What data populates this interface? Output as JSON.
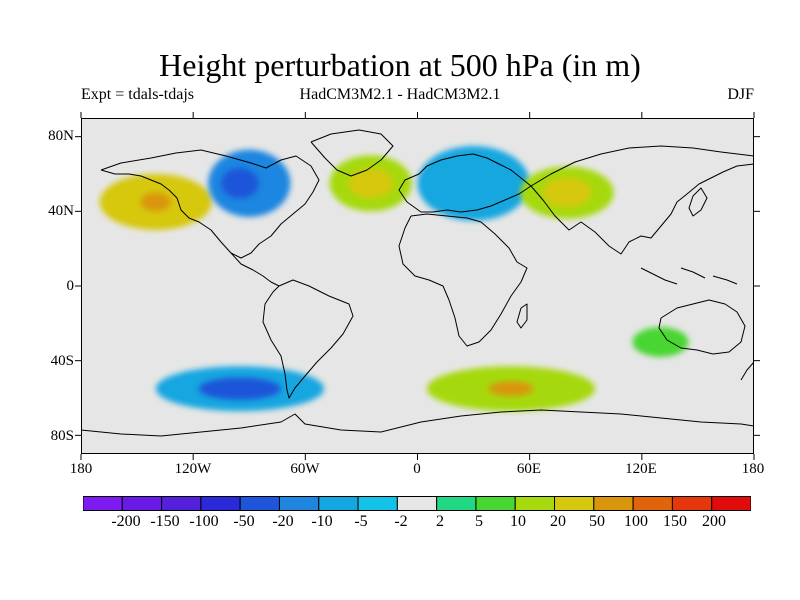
{
  "title": "Height perturbation at 500 hPa (in m)",
  "subtitle_left": "Expt = tdals-tdajs",
  "subtitle_center": "HadCM3M2.1 - HadCM3M2.1",
  "subtitle_right": "DJF",
  "lat_labels": [
    "80N",
    "40N",
    "0",
    "40S",
    "80S"
  ],
  "lon_labels": [
    "180",
    "120W",
    "60W",
    "0",
    "60E",
    "120E",
    "180"
  ],
  "colorbar": {
    "labels": [
      "-200",
      "-150",
      "-100",
      "-50",
      "-20",
      "-10",
      "-5",
      "-2",
      "2",
      "5",
      "10",
      "20",
      "50",
      "100",
      "150",
      "200"
    ],
    "colors": [
      "#7d1aef",
      "#6a1ae6",
      "#5520dc",
      "#2a2ad8",
      "#1f55d8",
      "#1f86e0",
      "#13a6e0",
      "#13c2e6",
      "#e6e6e6",
      "#21d884",
      "#48d630",
      "#a6d90e",
      "#d6c80c",
      "#d9960c",
      "#e0640c",
      "#e6360c",
      "#e00c0c"
    ]
  },
  "map": {
    "background": "#e6e6e6",
    "projection": "cylindrical equidistant"
  },
  "chart_data": {
    "type": "heatmap",
    "title": "Height perturbation at 500 hPa (in m)",
    "season": "DJF",
    "units": "m",
    "xlim": [
      -180,
      180
    ],
    "ylim": [
      -90,
      90
    ],
    "contour_levels": [
      -200,
      -150,
      -100,
      -50,
      -20,
      -10,
      -5,
      -2,
      2,
      5,
      10,
      20,
      50,
      100,
      150,
      200
    ],
    "features": [
      {
        "name": "north-pacific-high",
        "lon": -140,
        "lat": 45,
        "rx": 30,
        "ry": 15,
        "level": 20
      },
      {
        "name": "north-pacific-high-core",
        "lon": -140,
        "lat": 45,
        "rx": 8,
        "ry": 5,
        "level": 50
      },
      {
        "name": "north-america-low",
        "lon": -90,
        "lat": 55,
        "rx": 22,
        "ry": 18,
        "level": -20
      },
      {
        "name": "north-america-low-core",
        "lon": -95,
        "lat": 55,
        "rx": 10,
        "ry": 8,
        "level": -50
      },
      {
        "name": "north-atlantic-high",
        "lon": -25,
        "lat": 55,
        "rx": 22,
        "ry": 15,
        "level": 10
      },
      {
        "name": "north-atlantic-high-core",
        "lon": -25,
        "lat": 55,
        "rx": 12,
        "ry": 8,
        "level": 20
      },
      {
        "name": "eurasia-low",
        "lon": 30,
        "lat": 55,
        "rx": 30,
        "ry": 20,
        "level": -10
      },
      {
        "name": "siberia-high",
        "lon": 80,
        "lat": 50,
        "rx": 25,
        "ry": 14,
        "level": 10
      },
      {
        "name": "siberia-high-core",
        "lon": 80,
        "lat": 50,
        "rx": 13,
        "ry": 8,
        "level": 20
      },
      {
        "name": "south-pacific-low",
        "lon": -95,
        "lat": -55,
        "rx": 45,
        "ry": 12,
        "level": -10
      },
      {
        "name": "south-pacific-low-core",
        "lon": -95,
        "lat": -55,
        "rx": 22,
        "ry": 6,
        "level": -50
      },
      {
        "name": "south-indian-high",
        "lon": 50,
        "lat": -55,
        "rx": 45,
        "ry": 12,
        "level": 10
      },
      {
        "name": "south-indian-high-core",
        "lon": 50,
        "lat": -55,
        "rx": 12,
        "ry": 4,
        "level": 50
      },
      {
        "name": "australia-high",
        "lon": 130,
        "lat": -30,
        "rx": 15,
        "ry": 8,
        "level": 5
      }
    ]
  }
}
